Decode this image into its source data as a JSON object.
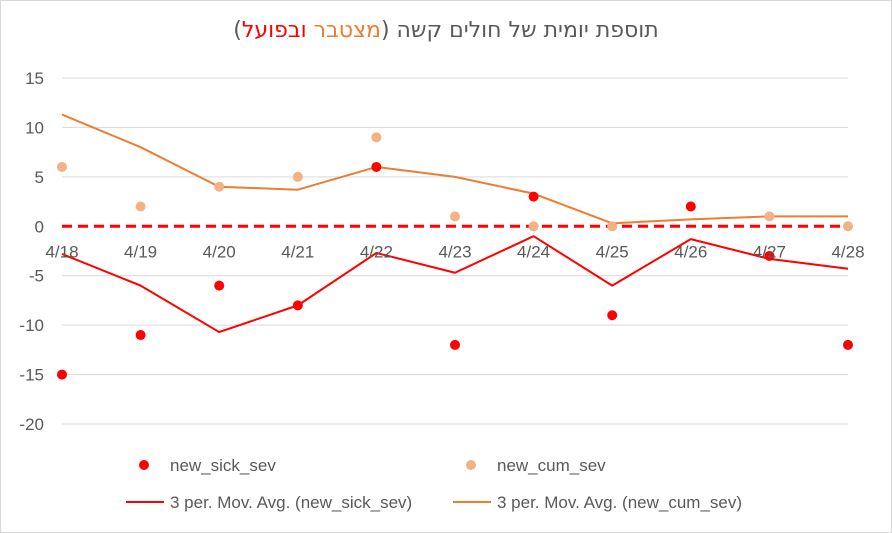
{
  "chart_data": {
    "type": "line",
    "title_parts": [
      {
        "text": "תוספת יומית של חולים קשה (",
        "color": "#595959"
      },
      {
        "text": "מצטבר",
        "color": "#ed7d31"
      },
      {
        "text": " ",
        "color": "#595959"
      },
      {
        "text": "ובפועל",
        "color": "#ff0000"
      },
      {
        "text": ")",
        "color": "#595959"
      }
    ],
    "categories": [
      "4/18",
      "4/19",
      "4/20",
      "4/21",
      "4/22",
      "4/23",
      "4/24",
      "4/25",
      "4/26",
      "4/27",
      "4/28"
    ],
    "y_ticks": [
      15,
      10,
      5,
      0,
      -5,
      -10,
      -15,
      -20
    ],
    "ylim": [
      -20,
      15
    ],
    "grid": true,
    "legend_position": "bottom",
    "series": [
      {
        "name": "new_sick_sev",
        "kind": "scatter",
        "color": "#ff0000",
        "values": [
          -15,
          -11,
          -6,
          -8,
          6,
          -12,
          3,
          -9,
          2,
          -3,
          -12
        ]
      },
      {
        "name": "new_cum_sev",
        "kind": "scatter",
        "color": "#f4b183",
        "values": [
          6,
          2,
          4,
          5,
          9,
          1,
          0,
          0,
          2,
          1,
          0
        ]
      },
      {
        "name": "3 per. Mov. Avg. (new_sick_sev)",
        "kind": "line",
        "color": "#ff0000",
        "values": [
          -2.8,
          -6,
          -10.7,
          -8,
          -2.7,
          -4.7,
          -1,
          -6,
          -1.3,
          -3.3,
          -4.3
        ]
      },
      {
        "name": "3 per. Mov. Avg. (new_cum_sev)",
        "kind": "line",
        "color": "#ed7d31",
        "values": [
          11.3,
          8,
          4,
          3.7,
          6,
          5,
          3.3,
          0.3,
          0.7,
          1,
          1
        ]
      }
    ],
    "reference_line": {
      "value": 0,
      "color": "#ff0000",
      "style": "dashed"
    }
  }
}
